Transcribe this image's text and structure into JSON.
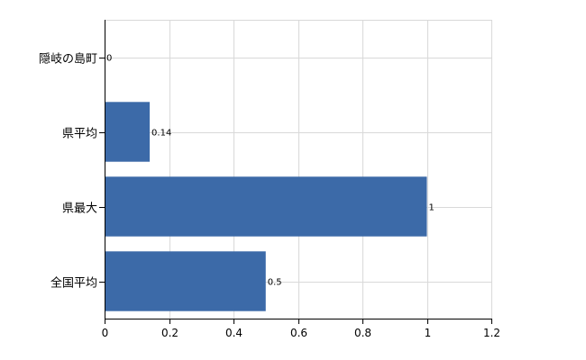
{
  "chart_data": {
    "type": "bar",
    "orientation": "horizontal",
    "categories": [
      "隠岐の島町",
      "県平均",
      "県最大",
      "全国平均"
    ],
    "values": [
      0,
      0.14,
      1,
      0.5
    ],
    "value_labels": [
      "0",
      "0.14",
      "1",
      "0.5"
    ],
    "xlim": [
      0,
      1.2
    ],
    "xticks": [
      0,
      0.2,
      0.4,
      0.6,
      0.8,
      1,
      1.2
    ],
    "xtick_labels": [
      "0",
      "0.2",
      "0.4",
      "0.6",
      "0.8",
      "1",
      "1.2"
    ],
    "title": "",
    "xlabel": "",
    "ylabel": "",
    "grid": true,
    "legend": "none",
    "bar_color": "#3c6aa8"
  }
}
